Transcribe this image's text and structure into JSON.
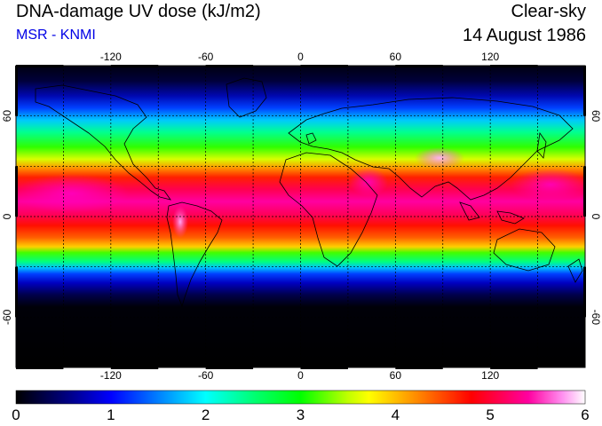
{
  "header": {
    "title": "DNA-damage UV dose (kJ/m2)",
    "source": "MSR - KNMI",
    "sky_condition": "Clear-sky",
    "date": "14 August 1986"
  },
  "map": {
    "longitude_ticks": [
      "-120",
      "-60",
      "0",
      "60",
      "120"
    ],
    "latitude_ticks": [
      "60",
      "0",
      "-60"
    ],
    "grid_lines": "dotted, every 30 degrees",
    "projection": "equirectangular, 180W-180E, 90S-90N",
    "coastlines": "black"
  },
  "colorbar": {
    "labels": [
      "0",
      "1",
      "2",
      "3",
      "4",
      "5",
      "6"
    ],
    "range": [
      0,
      6
    ],
    "colors": [
      "#000000",
      "#0000ff",
      "#00ffff",
      "#00ff00",
      "#ffff00",
      "#ff0000",
      "#ff00a0",
      "#ffffff"
    ]
  }
}
